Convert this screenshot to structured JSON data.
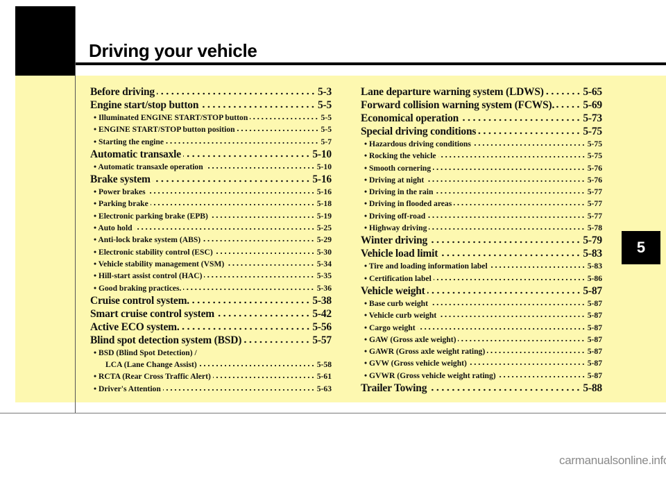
{
  "header": {
    "title": "Driving your vehicle"
  },
  "chapter_tab": "5",
  "colors": {
    "background_band": "#fdf8b0",
    "tab": "#000000"
  },
  "toc": {
    "left": [
      {
        "level": "main",
        "label": "Before driving",
        "page": "5-3"
      },
      {
        "level": "main",
        "label": "Engine start/stop button",
        "page": "5-5"
      },
      {
        "level": "sub",
        "label": "• Illuminated ENGINE START/STOP button",
        "page": "5-5"
      },
      {
        "level": "sub",
        "label": "• ENGINE START/STOP button position",
        "page": "5-5"
      },
      {
        "level": "sub",
        "label": "• Starting the engine",
        "page": "5-7"
      },
      {
        "level": "main",
        "label": "Automatic transaxle",
        "page": "5-10"
      },
      {
        "level": "sub",
        "label": "• Automatic transaxle operation",
        "page": "5-10"
      },
      {
        "level": "main",
        "label": "Brake system",
        "page": "5-16"
      },
      {
        "level": "sub",
        "label": "• Power brakes",
        "page": "5-16"
      },
      {
        "level": "sub",
        "label": "• Parking brake",
        "page": "5-18"
      },
      {
        "level": "sub",
        "label": "• Electronic parking brake (EPB)",
        "page": "5-19"
      },
      {
        "level": "sub",
        "label": "• Auto hold",
        "page": "5-25"
      },
      {
        "level": "sub",
        "label": "• Anti-lock brake system (ABS)",
        "page": "5-29"
      },
      {
        "level": "sub",
        "label": "• Electronic stability control (ESC)",
        "page": "5-30"
      },
      {
        "level": "sub",
        "label": "• Vehicle stability management (VSM)",
        "page": "5-34"
      },
      {
        "level": "sub",
        "label": "• Hill-start assist control (HAC)",
        "page": "5-35"
      },
      {
        "level": "sub",
        "label": "• Good braking practices.",
        "page": "5-36"
      },
      {
        "level": "main",
        "label": "Cruise control system.",
        "page": "5-38"
      },
      {
        "level": "main",
        "label": "Smart cruise control system",
        "page": "5-42"
      },
      {
        "level": "main",
        "label": "Active ECO system.",
        "page": "5-56"
      },
      {
        "level": "main",
        "label": "Blind spot detection system (BSD)",
        "page": "5-57"
      },
      {
        "level": "sub",
        "label": "• BSD (Blind Spot Detection) /",
        "page": ""
      },
      {
        "level": "cont",
        "label": "LCA (Lane Change Assist)",
        "page": "5-58"
      },
      {
        "level": "sub",
        "label": "• RCTA (Rear Cross Traffic Alert)",
        "page": "5-61"
      },
      {
        "level": "sub",
        "label": "• Driver's Attention",
        "page": "5-63"
      }
    ],
    "right": [
      {
        "level": "main",
        "label": "Lane departure warning system (LDWS)",
        "page": "5-65"
      },
      {
        "level": "main",
        "label": "Forward collision warning system (FCWS).",
        "page": "5-69"
      },
      {
        "level": "main",
        "label": "Economical operation",
        "page": "5-73"
      },
      {
        "level": "main",
        "label": "Special driving conditions",
        "page": "5-75"
      },
      {
        "level": "sub",
        "label": "• Hazardous driving conditions",
        "page": "5-75"
      },
      {
        "level": "sub",
        "label": "• Rocking the vehicle",
        "page": "5-75"
      },
      {
        "level": "sub",
        "label": "• Smooth cornering",
        "page": "5-76"
      },
      {
        "level": "sub",
        "label": "• Driving at night",
        "page": "5-76"
      },
      {
        "level": "sub",
        "label": "• Driving in the rain",
        "page": "5-77"
      },
      {
        "level": "sub",
        "label": "• Driving in flooded areas",
        "page": "5-77"
      },
      {
        "level": "sub",
        "label": "• Driving off-road",
        "page": "5-77"
      },
      {
        "level": "sub",
        "label": "• Highway driving",
        "page": "5-78"
      },
      {
        "level": "main",
        "label": "Winter driving",
        "page": "5-79"
      },
      {
        "level": "main",
        "label": "Vehicle load limit",
        "page": "5-83"
      },
      {
        "level": "sub",
        "label": "• Tire and loading information label",
        "page": "5-83"
      },
      {
        "level": "sub",
        "label": "• Certification label",
        "page": "5-86"
      },
      {
        "level": "main",
        "label": "Vehicle weight",
        "page": "5-87"
      },
      {
        "level": "sub",
        "label": "• Base curb weight",
        "page": "5-87"
      },
      {
        "level": "sub",
        "label": "• Vehicle curb weight",
        "page": "5-87"
      },
      {
        "level": "sub",
        "label": "• Cargo weight",
        "page": "5-87"
      },
      {
        "level": "sub",
        "label": "• GAW (Gross axle weight)",
        "page": "5-87"
      },
      {
        "level": "sub",
        "label": "• GAWR (Gross axle weight rating)",
        "page": "5-87"
      },
      {
        "level": "sub",
        "label": "• GVW (Gross vehicle weight)",
        "page": "5-87"
      },
      {
        "level": "sub",
        "label": "• GVWR (Gross vehicle weight rating)",
        "page": "5-87"
      },
      {
        "level": "main",
        "label": "Trailer Towing",
        "page": "5-88"
      }
    ]
  },
  "watermark": "carmanualsonline.info"
}
